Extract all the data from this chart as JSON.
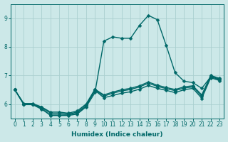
{
  "xlabel": "Humidex (Indice chaleur)",
  "bg_color": "#cce8e8",
  "line_color": "#006868",
  "grid_color": "#aacfcf",
  "xlim": [
    -0.5,
    23.5
  ],
  "ylim": [
    5.5,
    9.5
  ],
  "yticks": [
    6,
    7,
    8,
    9
  ],
  "xticks": [
    0,
    1,
    2,
    3,
    4,
    5,
    6,
    7,
    8,
    9,
    10,
    11,
    12,
    13,
    14,
    15,
    16,
    17,
    18,
    19,
    20,
    21,
    22,
    23
  ],
  "peak_x": [
    0,
    1,
    2,
    3,
    4,
    5,
    6,
    7,
    8,
    9,
    10,
    11,
    12,
    13,
    14,
    15,
    16,
    17,
    18,
    19,
    20,
    21,
    22,
    23
  ],
  "peak_y": [
    6.5,
    6.0,
    6.0,
    5.85,
    5.6,
    5.6,
    5.6,
    5.65,
    5.9,
    6.4,
    8.2,
    8.35,
    8.3,
    8.3,
    8.75,
    9.1,
    8.95,
    8.05,
    7.1,
    6.8,
    6.75,
    6.55,
    6.95,
    6.85
  ],
  "flat1_x": [
    0,
    1,
    2,
    3,
    4,
    5,
    6,
    7,
    8,
    9,
    10,
    11,
    12,
    13,
    14,
    15,
    16,
    17,
    18,
    19,
    20,
    21,
    22,
    23
  ],
  "flat1_y": [
    6.5,
    5.98,
    5.98,
    5.82,
    5.62,
    5.62,
    5.62,
    5.68,
    5.92,
    6.48,
    6.22,
    6.3,
    6.38,
    6.43,
    6.52,
    6.65,
    6.55,
    6.48,
    6.4,
    6.5,
    6.55,
    6.2,
    6.92,
    6.82
  ],
  "flat2_x": [
    0,
    1,
    2,
    3,
    4,
    5,
    6,
    7,
    8,
    9,
    10,
    11,
    12,
    13,
    14,
    15,
    16,
    17,
    18,
    19,
    20,
    21,
    22,
    23
  ],
  "flat2_y": [
    6.5,
    6.0,
    6.0,
    5.88,
    5.68,
    5.68,
    5.65,
    5.72,
    5.96,
    6.5,
    6.28,
    6.38,
    6.46,
    6.51,
    6.6,
    6.73,
    6.62,
    6.54,
    6.47,
    6.56,
    6.6,
    6.27,
    6.97,
    6.87
  ],
  "flat3_x": [
    0,
    1,
    2,
    3,
    4,
    5,
    6,
    7,
    8,
    9,
    10,
    11,
    12,
    13,
    14,
    15,
    16,
    17,
    18,
    19,
    20,
    21,
    22,
    23
  ],
  "flat3_y": [
    6.5,
    6.02,
    6.02,
    5.9,
    5.72,
    5.72,
    5.68,
    5.76,
    6.0,
    6.52,
    6.32,
    6.42,
    6.5,
    6.55,
    6.64,
    6.77,
    6.66,
    6.58,
    6.51,
    6.6,
    6.64,
    6.32,
    7.0,
    6.9
  ],
  "marker_size": 2.5,
  "line_width": 1.0
}
